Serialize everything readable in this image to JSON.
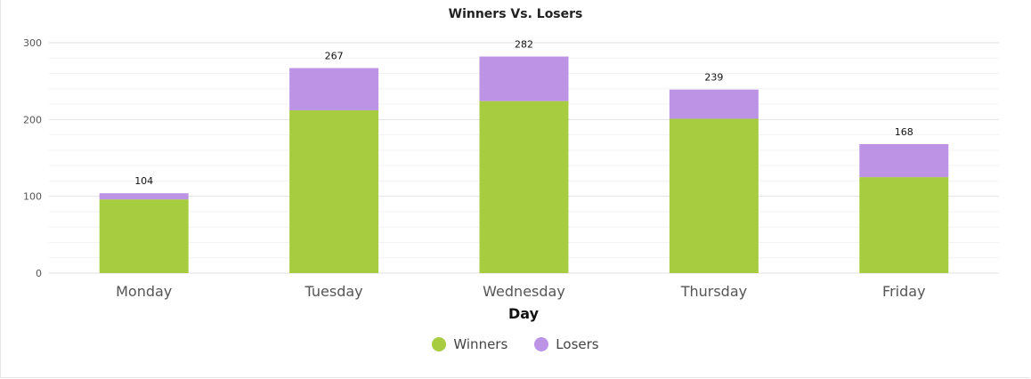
{
  "chart_data": {
    "type": "bar",
    "stacked": true,
    "title": "Winners Vs. Losers",
    "xlabel": "Day",
    "ylabel": "",
    "categories": [
      "Monday",
      "Tuesday",
      "Wednesday",
      "Thursday",
      "Friday"
    ],
    "series": [
      {
        "name": "Winners",
        "values": [
          96,
          212,
          224,
          201,
          125
        ],
        "color": "#a8cc3f"
      },
      {
        "name": "Losers",
        "values": [
          8,
          55,
          58,
          38,
          43
        ],
        "color": "#bd93e6"
      }
    ],
    "totals": [
      104,
      267,
      282,
      239,
      168
    ],
    "ylim": [
      0,
      300
    ],
    "yticks": [
      0,
      100,
      200,
      300
    ],
    "grid": true,
    "legend_position": "bottom-center"
  }
}
